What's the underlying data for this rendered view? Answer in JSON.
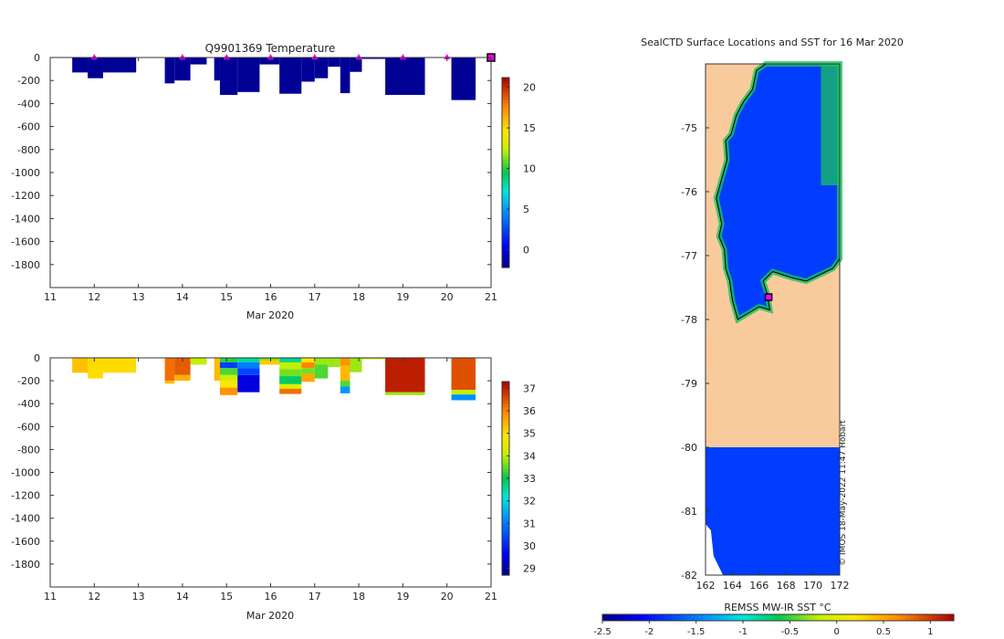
{
  "colors": {
    "land": "#f9cb9c",
    "sst_ocean": "#0b7df0",
    "sst_coastal": "#19c25e",
    "marker_fill": "#ff00ff",
    "marker_edge": "#000000",
    "background": "#ffffff",
    "axes": "#333333",
    "white_nodata": "#ffffff"
  },
  "chart_data": [
    {
      "id": "temperature",
      "type": "heatmap",
      "title": "Q9901369  Temperature",
      "xlabel": "Mar 2020",
      "ylabel": "",
      "xlim": [
        11,
        21
      ],
      "ylim": [
        -2000,
        0
      ],
      "xticks": [
        "11",
        "12",
        "13",
        "14",
        "15",
        "16",
        "17",
        "18",
        "19",
        "20",
        "21"
      ],
      "yticks": [
        "0",
        "-200",
        "-400",
        "-600",
        "-800",
        "-1000",
        "-1200",
        "-1400",
        "-1600",
        "-1800"
      ],
      "ytick_values": [
        0,
        -200,
        -400,
        -600,
        -800,
        -1000,
        -1200,
        -1400,
        -1600,
        -1800
      ],
      "colorbar": {
        "ticks": [
          "0",
          "5",
          "10",
          "15",
          "20"
        ],
        "tick_values": [
          0,
          5,
          10,
          15,
          20
        ],
        "range": [
          -2.2,
          21.2
        ]
      },
      "surface_markers_day": [
        12,
        14,
        15,
        16,
        17,
        18,
        19,
        20
      ],
      "endpoint_marker_day": 21,
      "profiles": [
        {
          "start": 11.5,
          "end": 11.85,
          "depth": 130,
          "segments": [
            {
              "top": 0,
              "bottom": 130,
              "value": -1.8
            }
          ]
        },
        {
          "start": 11.85,
          "end": 12.2,
          "depth": 180,
          "segments": [
            {
              "top": 0,
              "bottom": 180,
              "value": -1.8
            }
          ]
        },
        {
          "start": 12.2,
          "end": 12.95,
          "depth": 130,
          "segments": [
            {
              "top": 0,
              "bottom": 130,
              "value": -1.8
            }
          ]
        },
        {
          "start": 13.6,
          "end": 13.82,
          "depth": 225,
          "segments": [
            {
              "top": 0,
              "bottom": 225,
              "value": -1.8
            }
          ]
        },
        {
          "start": 13.82,
          "end": 14.18,
          "depth": 200,
          "segments": [
            {
              "top": 0,
              "bottom": 200,
              "value": -1.8
            }
          ]
        },
        {
          "start": 14.18,
          "end": 14.55,
          "depth": 60,
          "segments": [
            {
              "top": 0,
              "bottom": 60,
              "value": -1.8
            }
          ]
        },
        {
          "start": 14.72,
          "end": 14.85,
          "depth": 200,
          "segments": [
            {
              "top": 0,
              "bottom": 200,
              "value": -1.8
            }
          ]
        },
        {
          "start": 14.85,
          "end": 15.25,
          "depth": 325,
          "segments": [
            {
              "top": 0,
              "bottom": 325,
              "value": -1.8
            }
          ]
        },
        {
          "start": 15.25,
          "end": 15.75,
          "depth": 300,
          "segments": [
            {
              "top": 0,
              "bottom": 300,
              "value": -1.8
            }
          ]
        },
        {
          "start": 15.75,
          "end": 16.2,
          "depth": 60,
          "segments": [
            {
              "top": 0,
              "bottom": 60,
              "value": -1.8
            }
          ]
        },
        {
          "start": 16.2,
          "end": 16.7,
          "depth": 315,
          "segments": [
            {
              "top": 0,
              "bottom": 315,
              "value": -1.8
            }
          ]
        },
        {
          "start": 16.7,
          "end": 17.0,
          "depth": 210,
          "segments": [
            {
              "top": 0,
              "bottom": 210,
              "value": -1.8
            }
          ]
        },
        {
          "start": 17.0,
          "end": 17.3,
          "depth": 180,
          "segments": [
            {
              "top": 0,
              "bottom": 180,
              "value": -1.8
            }
          ]
        },
        {
          "start": 17.3,
          "end": 17.58,
          "depth": 80,
          "segments": [
            {
              "top": 0,
              "bottom": 80,
              "value": -1.8
            }
          ]
        },
        {
          "start": 17.58,
          "end": 17.8,
          "depth": 310,
          "segments": [
            {
              "top": 0,
              "bottom": 310,
              "value": -1.8
            }
          ]
        },
        {
          "start": 17.8,
          "end": 18.07,
          "depth": 125,
          "segments": [
            {
              "top": 0,
              "bottom": 125,
              "value": -1.8
            }
          ]
        },
        {
          "start": 18.07,
          "end": 18.6,
          "depth": 12,
          "segments": [
            {
              "top": 0,
              "bottom": 12,
              "value": -1.8
            }
          ]
        },
        {
          "start": 18.6,
          "end": 19.5,
          "depth": 325,
          "segments": [
            {
              "top": 0,
              "bottom": 325,
              "value": -1.8
            }
          ]
        },
        {
          "start": 20.1,
          "end": 20.65,
          "depth": 370,
          "segments": [
            {
              "top": 0,
              "bottom": 370,
              "value": -1.8
            }
          ]
        }
      ]
    },
    {
      "id": "salinity",
      "type": "heatmap",
      "title": "",
      "xlabel": "Mar 2020",
      "ylabel": "",
      "xlim": [
        11,
        21
      ],
      "ylim": [
        -2000,
        0
      ],
      "xticks": [
        "11",
        "12",
        "13",
        "14",
        "15",
        "16",
        "17",
        "18",
        "19",
        "20",
        "21"
      ],
      "yticks": [
        "0",
        "-200",
        "-400",
        "-600",
        "-800",
        "-1000",
        "-1200",
        "-1400",
        "-1600",
        "-1800"
      ],
      "ytick_values": [
        0,
        -200,
        -400,
        -600,
        -800,
        -1000,
        -1200,
        -1400,
        -1600,
        -1800
      ],
      "colorbar": {
        "ticks": [
          "29",
          "30",
          "31",
          "32",
          "33",
          "34",
          "35",
          "36",
          "37"
        ],
        "tick_values": [
          29,
          30,
          31,
          32,
          33,
          34,
          35,
          36,
          37
        ],
        "range": [
          28.7,
          37.3
        ]
      },
      "profiles": [
        {
          "start": 11.5,
          "end": 11.85,
          "depth": 130,
          "segments": [
            {
              "top": 0,
              "bottom": 130,
              "value": 35.3
            }
          ]
        },
        {
          "start": 11.85,
          "end": 12.2,
          "depth": 180,
          "segments": [
            {
              "top": 0,
              "bottom": 180,
              "value": 35.0
            }
          ]
        },
        {
          "start": 12.2,
          "end": 12.95,
          "depth": 130,
          "segments": [
            {
              "top": 0,
              "bottom": 130,
              "value": 35.0
            }
          ]
        },
        {
          "start": 13.6,
          "end": 13.82,
          "depth": 225,
          "segments": [
            {
              "top": 0,
              "bottom": 200,
              "value": 36.2
            },
            {
              "top": 200,
              "bottom": 225,
              "value": 35.4
            }
          ]
        },
        {
          "start": 13.82,
          "end": 14.18,
          "depth": 200,
          "segments": [
            {
              "top": 0,
              "bottom": 150,
              "value": 36.4
            },
            {
              "top": 150,
              "bottom": 200,
              "value": 35.5
            }
          ]
        },
        {
          "start": 14.18,
          "end": 14.55,
          "depth": 60,
          "segments": [
            {
              "top": 0,
              "bottom": 60,
              "value": 34.0
            }
          ]
        },
        {
          "start": 14.72,
          "end": 14.85,
          "depth": 200,
          "segments": [
            {
              "top": 0,
              "bottom": 200,
              "value": 35.4
            }
          ]
        },
        {
          "start": 14.85,
          "end": 15.25,
          "depth": 325,
          "segments": [
            {
              "top": 0,
              "bottom": 40,
              "value": 33.2
            },
            {
              "top": 40,
              "bottom": 90,
              "value": 30.3
            },
            {
              "top": 90,
              "bottom": 150,
              "value": 33.4
            },
            {
              "top": 150,
              "bottom": 200,
              "value": 34.1
            },
            {
              "top": 200,
              "bottom": 260,
              "value": 34.9
            },
            {
              "top": 260,
              "bottom": 325,
              "value": 35.8
            }
          ]
        },
        {
          "start": 15.25,
          "end": 15.75,
          "depth": 300,
          "segments": [
            {
              "top": 0,
              "bottom": 40,
              "value": 32.5
            },
            {
              "top": 40,
              "bottom": 90,
              "value": 31.0
            },
            {
              "top": 90,
              "bottom": 150,
              "value": 30.4
            },
            {
              "top": 150,
              "bottom": 300,
              "value": 29.4
            }
          ]
        },
        {
          "start": 15.75,
          "end": 16.2,
          "depth": 60,
          "segments": [
            {
              "top": 0,
              "bottom": 20,
              "value": 33.6
            },
            {
              "top": 20,
              "bottom": 60,
              "value": 35.2
            }
          ]
        },
        {
          "start": 16.2,
          "end": 16.7,
          "depth": 315,
          "segments": [
            {
              "top": 0,
              "bottom": 40,
              "value": 32.6
            },
            {
              "top": 40,
              "bottom": 100,
              "value": 34.0
            },
            {
              "top": 100,
              "bottom": 160,
              "value": 33.6
            },
            {
              "top": 160,
              "bottom": 230,
              "value": 32.9
            },
            {
              "top": 230,
              "bottom": 270,
              "value": 34.4
            },
            {
              "top": 270,
              "bottom": 315,
              "value": 36.2
            }
          ]
        },
        {
          "start": 16.7,
          "end": 17.0,
          "depth": 210,
          "segments": [
            {
              "top": 0,
              "bottom": 40,
              "value": 34.8
            },
            {
              "top": 40,
              "bottom": 90,
              "value": 36.0
            },
            {
              "top": 90,
              "bottom": 140,
              "value": 33.6
            },
            {
              "top": 140,
              "bottom": 210,
              "value": 35.6
            }
          ]
        },
        {
          "start": 17.0,
          "end": 17.3,
          "depth": 180,
          "segments": [
            {
              "top": 0,
              "bottom": 60,
              "value": 33.8
            },
            {
              "top": 60,
              "bottom": 180,
              "value": 33.4
            }
          ]
        },
        {
          "start": 17.3,
          "end": 17.58,
          "depth": 80,
          "segments": [
            {
              "top": 0,
              "bottom": 80,
              "value": 33.8
            }
          ]
        },
        {
          "start": 17.58,
          "end": 17.8,
          "depth": 310,
          "segments": [
            {
              "top": 0,
              "bottom": 70,
              "value": 35.8
            },
            {
              "top": 70,
              "bottom": 200,
              "value": 35.4
            },
            {
              "top": 200,
              "bottom": 250,
              "value": 33.4
            },
            {
              "top": 250,
              "bottom": 310,
              "value": 31.3
            }
          ]
        },
        {
          "start": 17.8,
          "end": 18.07,
          "depth": 125,
          "segments": [
            {
              "top": 0,
              "bottom": 125,
              "value": 33.8
            }
          ]
        },
        {
          "start": 18.07,
          "end": 18.6,
          "depth": 12,
          "segments": [
            {
              "top": 0,
              "bottom": 12,
              "value": 34.0
            }
          ]
        },
        {
          "start": 18.6,
          "end": 19.5,
          "depth": 325,
          "segments": [
            {
              "top": 0,
              "bottom": 300,
              "value": 37.0
            },
            {
              "top": 300,
              "bottom": 325,
              "value": 33.8
            }
          ]
        },
        {
          "start": 20.1,
          "end": 20.65,
          "depth": 370,
          "segments": [
            {
              "top": 0,
              "bottom": 280,
              "value": 36.5
            },
            {
              "top": 280,
              "bottom": 320,
              "value": 34.0
            },
            {
              "top": 320,
              "bottom": 370,
              "value": 31.2
            }
          ]
        }
      ]
    },
    {
      "id": "sst_map",
      "type": "heatmap",
      "title": "SealCTD Surface Locations and SST for 16 Mar 2020",
      "xlabel": "",
      "ylabel": "",
      "xlim": [
        162,
        172
      ],
      "ylim": [
        -82,
        -74
      ],
      "xticks": [
        "162",
        "164",
        "166",
        "168",
        "170",
        "172"
      ],
      "xtick_values": [
        162,
        164,
        166,
        168,
        170,
        172
      ],
      "yticks": [
        "-75",
        "-76",
        "-77",
        "-78",
        "-79",
        "-80",
        "-81",
        "-82"
      ],
      "ytick_values": [
        -75,
        -76,
        -77,
        -78,
        -79,
        -80,
        -81,
        -82
      ],
      "colorbar": {
        "label": "REMSS MW-IR SST °C",
        "ticks": [
          "-2.5",
          "-2",
          "-1.5",
          "-1",
          "-0.5",
          "0",
          "0.5",
          "1"
        ],
        "tick_values": [
          -2.5,
          -2,
          -1.5,
          -1,
          -0.5,
          0,
          0.5,
          1
        ],
        "range": [
          -2.5,
          1.25
        ]
      },
      "sst_ocean_value": -1.8,
      "coastline": [
        [
          166.5,
          -74
        ],
        [
          165.8,
          -74.1
        ],
        [
          165.5,
          -74.4
        ],
        [
          164.8,
          -74.6
        ],
        [
          164.3,
          -74.8
        ],
        [
          163.9,
          -75.1
        ],
        [
          163.5,
          -75.2
        ],
        [
          163.6,
          -75.5
        ],
        [
          163.2,
          -75.8
        ],
        [
          162.8,
          -76.1
        ],
        [
          163.2,
          -76.5
        ],
        [
          163.0,
          -76.7
        ],
        [
          163.4,
          -76.9
        ],
        [
          163.5,
          -77.2
        ],
        [
          163.8,
          -77.4
        ],
        [
          164.0,
          -77.7
        ],
        [
          164.4,
          -78.0
        ],
        [
          165.2,
          -77.9
        ],
        [
          166.0,
          -77.8
        ],
        [
          166.8,
          -77.85
        ],
        [
          166.6,
          -77.6
        ],
        [
          166.3,
          -77.4
        ],
        [
          167.0,
          -77.25
        ],
        [
          168.5,
          -77.35
        ],
        [
          169.5,
          -77.4
        ],
        [
          170.5,
          -77.3
        ],
        [
          171.5,
          -77.2
        ],
        [
          172,
          -77.05
        ]
      ],
      "shelf_edge_lat": -80,
      "marker": {
        "lon": 166.7,
        "lat": -77.65
      },
      "credit": "© IMOS 18-May-2022 11:47 Hobart"
    }
  ]
}
